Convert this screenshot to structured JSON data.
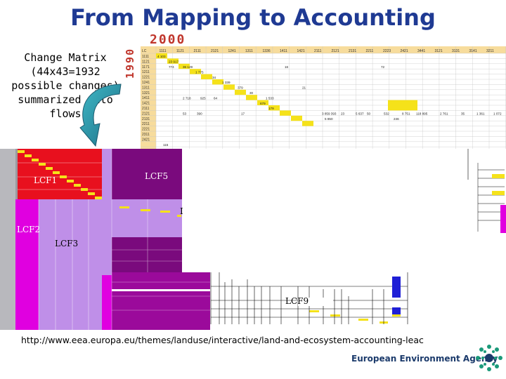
{
  "slide": {
    "title": "From Mapping to Accounting",
    "year_columns": "2000",
    "year_rows": "1990",
    "caption_lines": [
      "Change Matrix",
      "(44x43=1932",
      "possible changes)",
      "summarized into",
      "flows"
    ],
    "url": "http://www.eea.europa.eu/themes/landuse/interactive/land-and-ecosystem-accounting-leac",
    "agency": "European Environment Agency"
  },
  "flows": {
    "lcf1": "LCF1",
    "lcf2": "LCF2",
    "lcf3": "LCF3",
    "lcf5": "LCF5",
    "lcf9": "LCF9",
    "partial_label": "I"
  },
  "matrix": {
    "col_codes": [
      "LC",
      "1111",
      "1121",
      "2111",
      "2121",
      "1241",
      "1311",
      "1336",
      "1411",
      "1421",
      "2111",
      "2121",
      "2131",
      "2211",
      "2223",
      "2421",
      "3441",
      "3121",
      "3131",
      "3141",
      "3211"
    ],
    "row_codes": [
      "1111",
      "1121",
      "1171",
      "1211",
      "1221",
      "1241",
      "1311",
      "1321",
      "1411",
      "1421",
      "2111",
      "2121",
      "2131",
      "2211",
      "2221",
      "2311",
      "2421"
    ],
    "cell_values": [
      "4 103",
      "23 917",
      "774",
      "36 129",
      "16",
      "72",
      "1 775",
      "34",
      "1 339",
      "21",
      "379",
      "30",
      "2 718",
      "925",
      "64",
      "1 533",
      "679",
      "179",
      "53",
      "390",
      "17",
      "3 859 393",
      "23",
      "5 637",
      "50",
      "532",
      "8 751",
      "118 895",
      "2 761",
      "35",
      "1 361",
      "1 072",
      "5 850",
      "246",
      "115"
    ]
  },
  "colors": {
    "title": "#1f3a93",
    "year": "#c0362c",
    "matrix_header": "#f7dc9c",
    "diagonal": "#f5e21a",
    "lcf1": "#e8101e",
    "lcf2": "#e000e0",
    "lcf3": "#bf8fe8",
    "lcf5": "#7a0a7d",
    "lcf9": "#9b0a9b",
    "blue_block": "#1f1fd6",
    "accent_bars": "#e1e14a"
  }
}
